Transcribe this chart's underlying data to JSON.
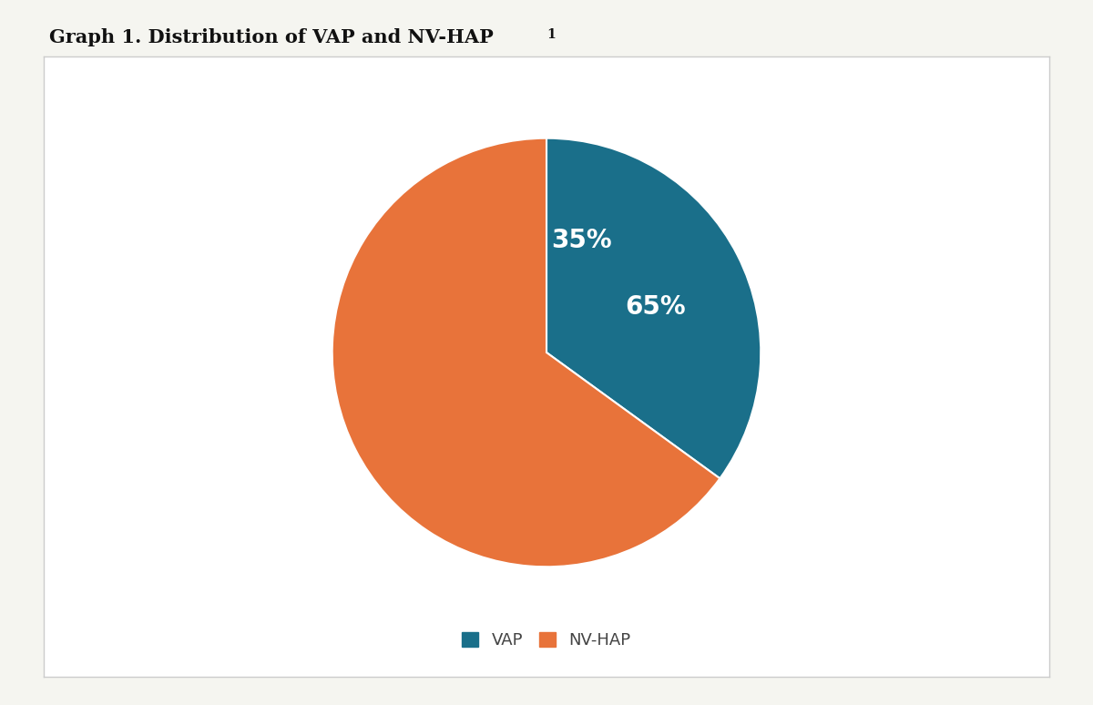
{
  "title": "Graph 1. Distribution of VAP and NV-HAP¹",
  "title_superscript": "1",
  "slices": [
    35,
    65
  ],
  "labels": [
    "VAP",
    "NV-HAP"
  ],
  "colors": [
    "#1a6f8a",
    "#e8733a"
  ],
  "text_color": "#ffffff",
  "pct_labels": [
    "35%",
    "65%"
  ],
  "pct_fontsize": 20,
  "legend_labels": [
    "VAP",
    "NV-HAP"
  ],
  "background_color": "#ffffff",
  "box_edge_color": "#cccccc",
  "startangle": 90,
  "figure_bg": "#f5f5f0"
}
